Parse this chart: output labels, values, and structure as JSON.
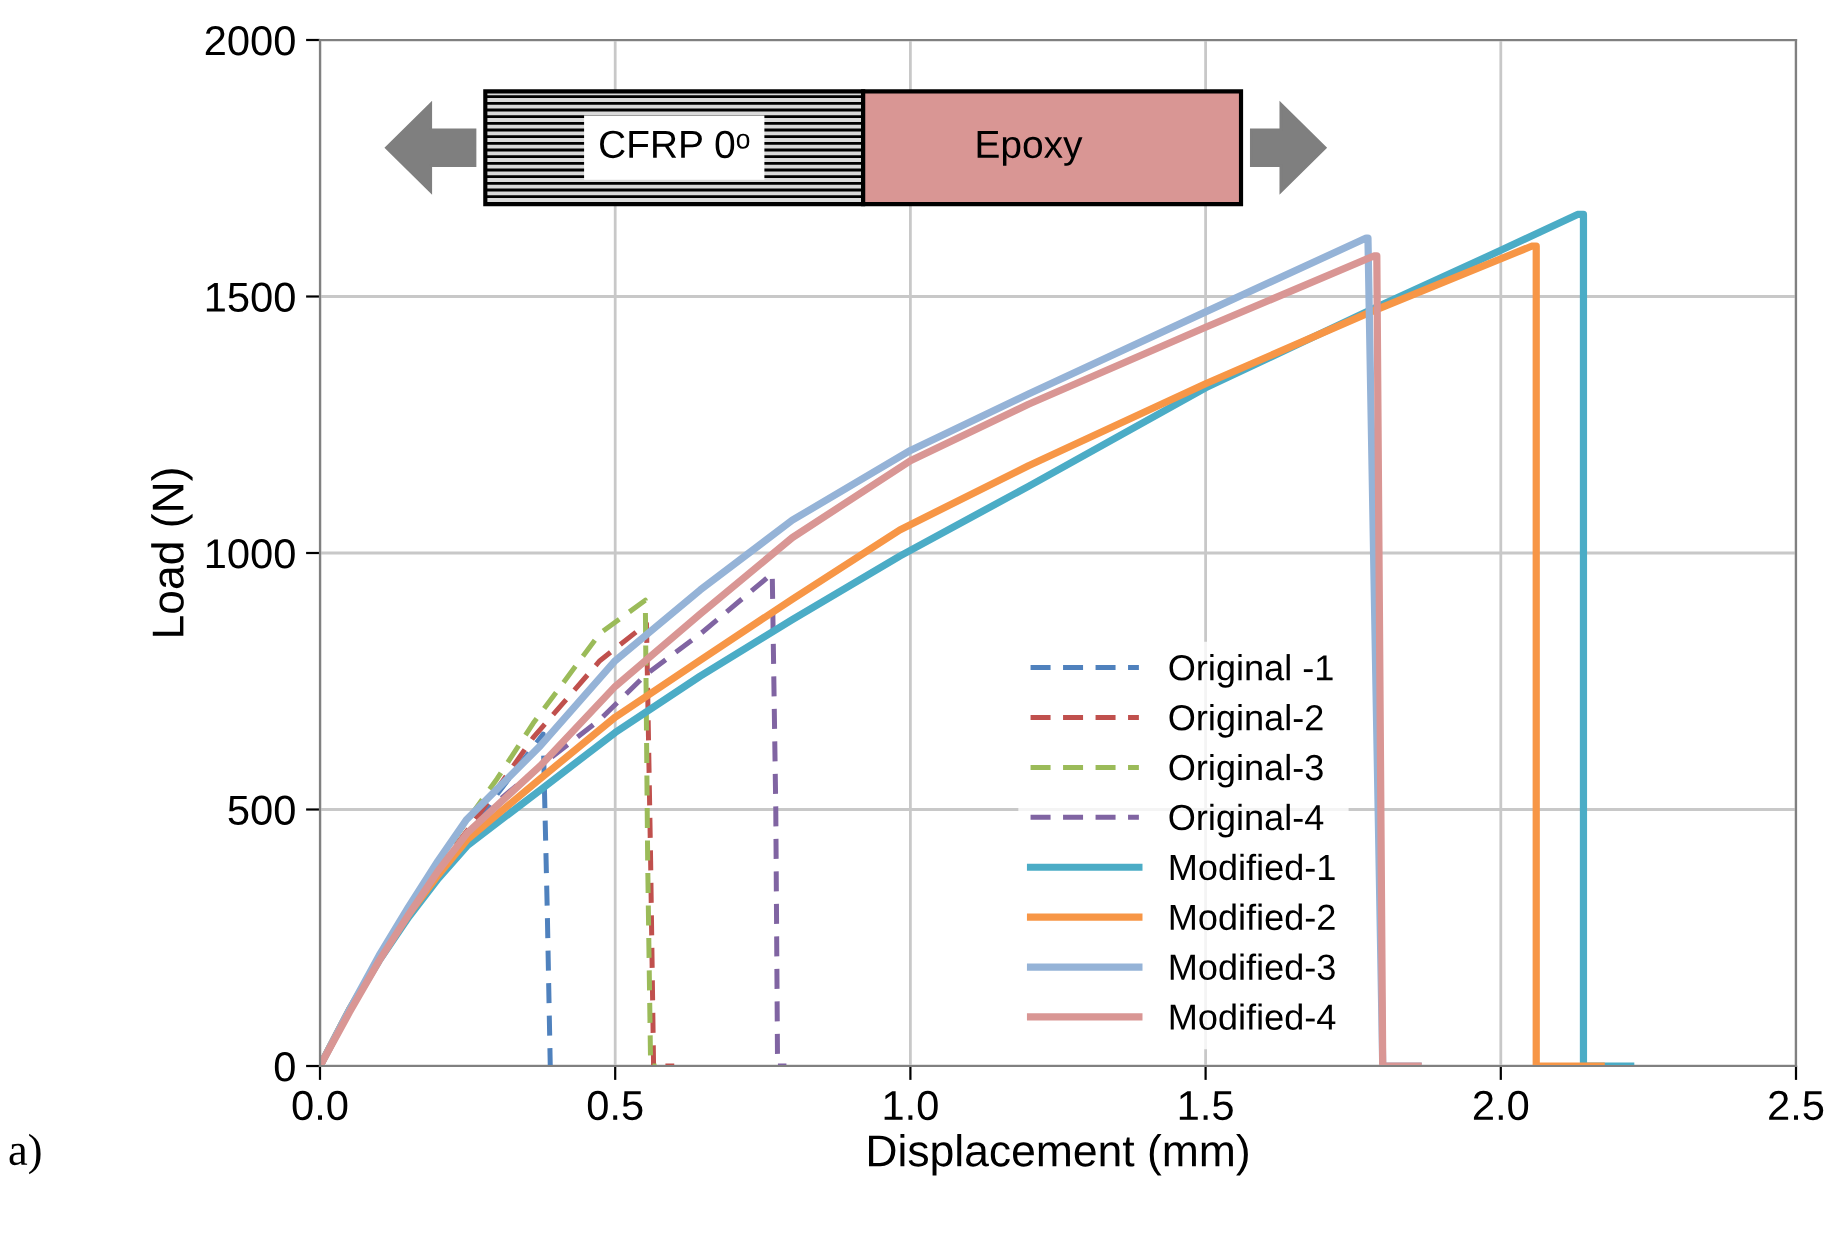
{
  "chart_data": {
    "type": "line",
    "xlabel": "Displacement (mm)",
    "ylabel": "Load (N)",
    "xlim": [
      0,
      2.5
    ],
    "xticks": [
      {
        "value": 0,
        "label": "0.0"
      },
      {
        "value": 0.5,
        "label": "0.5"
      },
      {
        "value": 1,
        "label": "1.0"
      },
      {
        "value": 1.5,
        "label": "1.5"
      },
      {
        "value": 2,
        "label": "2.0"
      },
      {
        "value": 2.5,
        "label": "2.5"
      }
    ],
    "ylim": [
      0,
      2000
    ],
    "yticks": [
      0,
      500,
      1000,
      1500,
      2000
    ],
    "grid": true,
    "legend": "bottom",
    "marker": "none",
    "annotations": [
      "CFRP 0ᵒ",
      "Epoxy",
      "a)"
    ],
    "series": [
      {
        "name": "Original -1",
        "color": "#4f81bd",
        "line_style": "dashed",
        "x": [
          0,
          0.05,
          0.1,
          0.15,
          0.2,
          0.25,
          0.3,
          0.378,
          0.385,
          0.39,
          0.4
        ],
        "values": [
          0,
          110,
          210,
          300,
          380,
          450,
          530,
          647,
          300,
          0,
          0
        ]
      },
      {
        "name": "Original-2",
        "color": "#c0504d",
        "line_style": "dashed",
        "x": [
          0,
          0.05,
          0.1,
          0.15,
          0.2,
          0.25,
          0.3,
          0.361,
          0.474,
          0.553,
          0.56,
          0.565,
          0.6
        ],
        "values": [
          0,
          110,
          210,
          300,
          385,
          460,
          540,
          640,
          790,
          862,
          400,
          0,
          0
        ]
      },
      {
        "name": "Original-3",
        "color": "#9bbb59",
        "line_style": "dashed",
        "x": [
          0,
          0.05,
          0.1,
          0.15,
          0.2,
          0.25,
          0.3,
          0.361,
          0.474,
          0.551,
          0.555,
          0.56,
          0.57
        ],
        "values": [
          0,
          110,
          215,
          310,
          395,
          480,
          560,
          668,
          843,
          908,
          400,
          0,
          0
        ]
      },
      {
        "name": "Original-4",
        "color": "#8064a2",
        "line_style": "dashed",
        "x": [
          0,
          0.05,
          0.1,
          0.15,
          0.2,
          0.25,
          0.3,
          0.373,
          0.474,
          0.553,
          0.644,
          0.766,
          0.772,
          0.775,
          0.79
        ],
        "values": [
          0,
          110,
          210,
          300,
          380,
          450,
          515,
          585,
          675,
          764,
          842,
          960,
          500,
          0,
          0
        ]
      },
      {
        "name": "Modified-1",
        "color": "#4bacc6",
        "line_style": "solid",
        "x": [
          0,
          0.05,
          0.1,
          0.15,
          0.2,
          0.25,
          0.373,
          0.5,
          0.644,
          0.8,
          0.982,
          1.2,
          1.5,
          1.78,
          2.0,
          2.13,
          2.14,
          2.14,
          2.22
        ],
        "values": [
          0,
          110,
          205,
          290,
          365,
          430,
          538,
          650,
          760,
          870,
          994,
          1130,
          1322,
          1474,
          1590,
          1660,
          1660,
          0,
          0
        ]
      },
      {
        "name": "Modified-2",
        "color": "#f79646",
        "line_style": "solid",
        "x": [
          0,
          0.05,
          0.1,
          0.15,
          0.2,
          0.25,
          0.373,
          0.5,
          0.644,
          0.8,
          0.982,
          1.2,
          1.5,
          1.78,
          2.052,
          2.06,
          2.06,
          2.17
        ],
        "values": [
          0,
          110,
          208,
          295,
          372,
          442,
          560,
          680,
          791,
          910,
          1045,
          1170,
          1330,
          1470,
          1598,
          1598,
          0,
          0
        ]
      },
      {
        "name": "Modified-3",
        "color": "#95b3d7",
        "line_style": "solid",
        "x": [
          0,
          0.05,
          0.1,
          0.15,
          0.2,
          0.248,
          0.373,
          0.5,
          0.644,
          0.8,
          1.0,
          1.2,
          1.5,
          1.772,
          1.775,
          1.8,
          1.86
        ],
        "values": [
          0,
          110,
          215,
          310,
          400,
          480,
          624,
          790,
          928,
          1064,
          1200,
          1310,
          1470,
          1614,
          1614,
          0,
          0
        ]
      },
      {
        "name": "Modified-4",
        "color": "#d99694",
        "line_style": "solid",
        "x": [
          0,
          0.05,
          0.1,
          0.15,
          0.2,
          0.25,
          0.373,
          0.5,
          0.644,
          0.8,
          1.0,
          1.2,
          1.5,
          1.785,
          1.79,
          1.8,
          1.86
        ],
        "values": [
          0,
          105,
          205,
          295,
          380,
          455,
          585,
          740,
          881,
          1030,
          1180,
          1290,
          1440,
          1579,
          1579,
          0,
          0
        ]
      }
    ]
  }
}
